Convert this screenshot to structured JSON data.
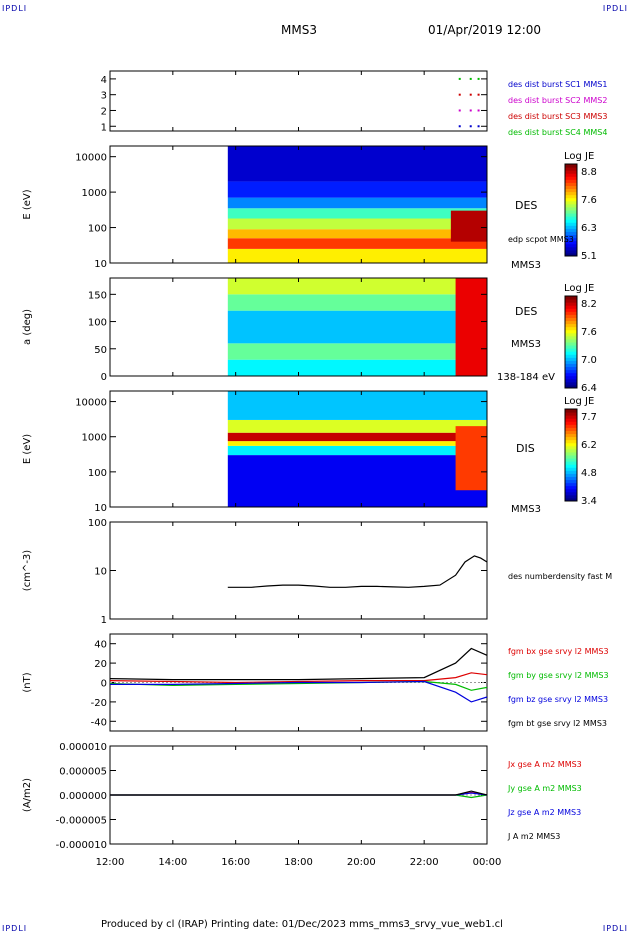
{
  "corner_label": "IPDLI",
  "header": {
    "spacecraft": "MMS3",
    "datetime": "01/Apr/2019 12:00"
  },
  "footer": {
    "text": "Produced by cl (IRAP)   Printing date: 01/Dec/2023   mms_mms3_srvy_vue_web1.cl"
  },
  "colors": {
    "mms1": "#0000cc",
    "mms2": "#cc00cc",
    "mms3": "#cc0000",
    "mms4": "#00bb00",
    "bx": "#dd0000",
    "by": "#00bb00",
    "bz": "#0000dd",
    "bt": "#000000"
  },
  "chart_data": [
    {
      "type": "scatter",
      "panel": "burst availability",
      "yticks": [
        "1",
        "2",
        "3",
        "4"
      ],
      "ylim": [
        0.7,
        4.5
      ],
      "legend": [
        "des dist burst SC1 MMS1",
        "des dist burst SC2 MMS2",
        "des dist burst SC3 MMS3",
        "des dist burst SC4 MMS4"
      ],
      "series": [
        {
          "name": "des dist burst SC1 MMS1",
          "level": 1,
          "times_h": [
            23.1,
            23.45,
            23.7
          ]
        },
        {
          "name": "des dist burst SC2 MMS2",
          "level": 2,
          "times_h": [
            23.1,
            23.45,
            23.7
          ]
        },
        {
          "name": "des dist burst SC3 MMS3",
          "level": 3,
          "times_h": [
            23.1,
            23.45,
            23.7
          ]
        },
        {
          "name": "des dist burst SC4 MMS4",
          "level": 4,
          "times_h": [
            23.1,
            23.45,
            23.7
          ]
        }
      ]
    },
    {
      "type": "heatmap",
      "panel": "DES energy spectrogram",
      "ylabel": "E (eV)",
      "yscale": "log",
      "ylim": [
        10,
        20000
      ],
      "yticks": [
        "10",
        "100",
        "1000",
        "10000"
      ],
      "side_labels": [
        "DES",
        "edp scpot MMS3",
        "MMS3"
      ],
      "colorbar": {
        "label": "Log JE",
        "min": 5.1,
        "max": 9.0,
        "ticks": [
          "8.8",
          "7.6",
          "6.3",
          "5.1"
        ]
      },
      "data_start_h": 15.75,
      "bands": [
        {
          "e_low": 10,
          "e_high": 25,
          "log_je": 7.6
        },
        {
          "e_low": 25,
          "e_high": 50,
          "log_je": 8.3
        },
        {
          "e_low": 50,
          "e_high": 90,
          "log_je": 7.8
        },
        {
          "e_low": 90,
          "e_high": 180,
          "log_je": 7.3
        },
        {
          "e_low": 180,
          "e_high": 350,
          "log_je": 6.8
        },
        {
          "e_low": 350,
          "e_high": 700,
          "log_je": 6.1
        },
        {
          "e_low": 700,
          "e_high": 2000,
          "log_je": 5.7
        },
        {
          "e_low": 2000,
          "e_high": 20000,
          "log_je": 5.4
        }
      ],
      "events": [
        {
          "t0_h": 22.85,
          "t1_h": 24.0,
          "e_low": 40,
          "e_high": 300,
          "log_je": 8.8
        }
      ]
    },
    {
      "type": "heatmap",
      "panel": "DES pitch angle",
      "ylabel": "a (deg)",
      "ylim": [
        0,
        180
      ],
      "yticks": [
        "0",
        "50",
        "100",
        "150"
      ],
      "side_labels": [
        "DES",
        "MMS3",
        "138-184 eV"
      ],
      "colorbar": {
        "label": "Log JE",
        "min": 6.4,
        "max": 8.3,
        "ticks": [
          "8.2",
          "7.6",
          "7.0",
          "6.4"
        ]
      },
      "data_start_h": 15.75,
      "rows": [
        {
          "a_low": 0,
          "a_high": 30,
          "log_je": 7.1
        },
        {
          "a_low": 30,
          "a_high": 60,
          "log_je": 7.3
        },
        {
          "a_low": 60,
          "a_high": 120,
          "log_je": 7.0
        },
        {
          "a_low": 120,
          "a_high": 150,
          "log_je": 7.3
        },
        {
          "a_low": 150,
          "a_high": 180,
          "log_je": 7.5
        }
      ],
      "events": [
        {
          "t0_h": 23.0,
          "t1_h": 24.0,
          "a_low": 0,
          "a_high": 180,
          "log_je": 8.1
        }
      ]
    },
    {
      "type": "heatmap",
      "panel": "DIS energy spectrogram",
      "ylabel": "E (eV)",
      "yscale": "log",
      "ylim": [
        10,
        20000
      ],
      "yticks": [
        "10",
        "100",
        "1000",
        "10000"
      ],
      "side_labels": [
        "DIS",
        "MMS3"
      ],
      "colorbar": {
        "label": "Log JE",
        "min": 3.4,
        "max": 7.8,
        "ticks": [
          "7.7",
          "6.2",
          "4.8",
          "3.4"
        ]
      },
      "data_start_h": 15.75,
      "bands": [
        {
          "e_low": 10,
          "e_high": 300,
          "log_je": 3.9
        },
        {
          "e_low": 300,
          "e_high": 550,
          "log_je": 5.0
        },
        {
          "e_low": 550,
          "e_high": 750,
          "log_je": 6.2
        },
        {
          "e_low": 750,
          "e_high": 1300,
          "log_je": 7.5
        },
        {
          "e_low": 1300,
          "e_high": 3000,
          "log_je": 6.0
        },
        {
          "e_low": 3000,
          "e_high": 20000,
          "log_je": 4.8
        }
      ],
      "events": [
        {
          "t0_h": 23.0,
          "t1_h": 24.0,
          "e_low": 30,
          "e_high": 2000,
          "log_je": 7.0
        }
      ]
    },
    {
      "type": "line",
      "panel": "electron density",
      "ylabel": "(cm^-3)",
      "yscale": "log",
      "ylim": [
        1,
        100
      ],
      "yticks": [
        "1",
        "10",
        "100"
      ],
      "series": [
        {
          "name": "des numberdensity fast M",
          "x": [
            15.75,
            16.5,
            17.0,
            17.5,
            18.0,
            18.5,
            19.0,
            19.5,
            20.0,
            20.5,
            21.0,
            21.5,
            22.0,
            22.5,
            23.0,
            23.3,
            23.6,
            23.8,
            24.0
          ],
          "y": [
            4.5,
            4.5,
            4.8,
            5.0,
            5.0,
            4.8,
            4.5,
            4.5,
            4.7,
            4.7,
            4.6,
            4.5,
            4.7,
            5.0,
            8.0,
            15.0,
            20.0,
            18.0,
            15.0
          ]
        }
      ]
    },
    {
      "type": "line",
      "panel": "magnetic field",
      "ylabel": "(nT)",
      "ylim": [
        -50,
        50
      ],
      "yticks": [
        "-40",
        "-20",
        "0",
        "20",
        "40"
      ],
      "series": [
        {
          "name": "fgm bx gse srvy l2 MMS3",
          "x": [
            12,
            14,
            16,
            18,
            20,
            22,
            23,
            23.5,
            24
          ],
          "y": [
            2,
            1,
            0,
            1,
            2,
            2,
            5,
            10,
            8
          ]
        },
        {
          "name": "fgm by gse srvy l2 MMS3",
          "x": [
            12,
            14,
            16,
            18,
            20,
            22,
            23,
            23.5,
            24
          ],
          "y": [
            -1,
            -3,
            -2,
            -1,
            0,
            1,
            -2,
            -8,
            -5
          ]
        },
        {
          "name": "fgm bz gse srvy l2 MMS3",
          "x": [
            12,
            14,
            16,
            18,
            20,
            22,
            23,
            23.5,
            24
          ],
          "y": [
            -2,
            -2,
            -1,
            0,
            0,
            1,
            -10,
            -20,
            -15
          ]
        },
        {
          "name": "fgm bt gse srvy l2 MMS3",
          "x": [
            12,
            14,
            16,
            18,
            20,
            22,
            23,
            23.5,
            24
          ],
          "y": [
            4,
            3,
            3,
            3,
            4,
            5,
            20,
            35,
            28
          ]
        }
      ]
    },
    {
      "type": "line",
      "panel": "current density",
      "ylabel": "(A/m2)",
      "ylim": [
        -1e-05,
        1e-05
      ],
      "yticks": [
        "0.000010",
        "0.000005",
        "0.000000",
        "-0.000005",
        "-0.000010"
      ],
      "series": [
        {
          "name": "Jx gse A m2 MMS3",
          "x": [
            12,
            16,
            20,
            23,
            23.5,
            24
          ],
          "y": [
            0,
            0,
            0,
            0,
            5e-07,
            0
          ]
        },
        {
          "name": "Jy gse A m2 MMS3",
          "x": [
            12,
            16,
            20,
            23,
            23.5,
            24
          ],
          "y": [
            0,
            0,
            0,
            0,
            -5e-07,
            0
          ]
        },
        {
          "name": "Jz gse A m2 MMS3",
          "x": [
            12,
            16,
            20,
            23,
            23.5,
            24
          ],
          "y": [
            0,
            0,
            0,
            0,
            4e-07,
            0
          ]
        },
        {
          "name": "J A m2 MMS3",
          "x": [
            12,
            16,
            20,
            23,
            23.5,
            24
          ],
          "y": [
            0,
            0,
            0,
            0,
            8e-07,
            0
          ]
        }
      ]
    }
  ],
  "xaxis": {
    "ticks": [
      "12:00",
      "14:00",
      "16:00",
      "18:00",
      "20:00",
      "22:00",
      "00:00"
    ],
    "hours": [
      12,
      14,
      16,
      18,
      20,
      22,
      24
    ]
  }
}
